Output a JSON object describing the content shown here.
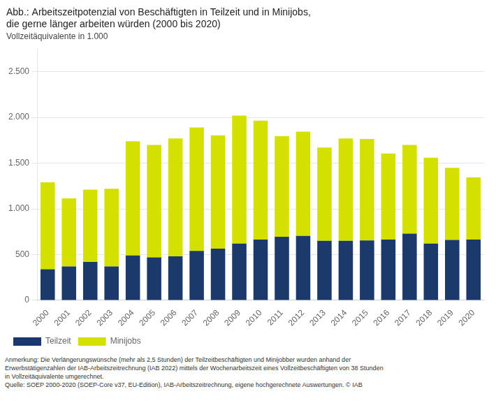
{
  "chart_data": {
    "type": "bar",
    "stacked": true,
    "title": [
      "Abb.: Arbeitszeitpotenzial von Beschäftigten in Teilzeit und in Minijobs,",
      "die gerne länger arbeiten würden (2000 bis 2020)"
    ],
    "subtitle": "Vollzeitäquivalente in 1.000",
    "categories": [
      2000,
      2001,
      2002,
      2003,
      2004,
      2005,
      2006,
      2007,
      2008,
      2009,
      2010,
      2011,
      2012,
      2013,
      2014,
      2015,
      2016,
      2017,
      2018,
      2019,
      2020
    ],
    "series": [
      {
        "name": "Teilzeit",
        "color": "#1b3a6b",
        "values": [
          340,
          370,
          420,
          370,
          490,
          470,
          480,
          540,
          565,
          620,
          665,
          695,
          705,
          650,
          650,
          655,
          665,
          730,
          620,
          660,
          665
        ]
      },
      {
        "name": "Minijobs",
        "color": "#d4e000",
        "values": [
          950,
          745,
          790,
          850,
          1250,
          1230,
          1290,
          1350,
          1240,
          1400,
          1300,
          1100,
          1140,
          1020,
          1120,
          1110,
          940,
          970,
          940,
          790,
          680
        ]
      }
    ],
    "ylim": [
      0,
      2750
    ],
    "yticks": [
      0,
      500,
      {
        "value": 1000,
        "label": "1.000"
      },
      {
        "value": 1500,
        "label": "1.500"
      },
      {
        "value": 2000,
        "label": "2.000"
      },
      {
        "value": 2500,
        "label": "2.500"
      }
    ],
    "grid": true,
    "legend": "bottom",
    "annotations": [
      "Anmerkung: Die Verlängerungswünsche (mehr als 2,5 Stunden) der Teilzeitbeschäftigten und Minijobber wurden anhand der",
      "Erwerbstätigenzahlen der IAB-Arbeitszeitrechnung (IAB 2022) mittels der Wochenarbeitszeit eines Vollzeitbeschäftigten von 38 Stunden",
      "in Vollzeitäquivalente umgerechnet.",
      "Quelle: SOEP 2000-2020 (SOEP-Core v37, EU-Edition), IAB-Arbeitszeitrechnung, eigene hochgerechnete Auswertungen. © IAB"
    ]
  }
}
